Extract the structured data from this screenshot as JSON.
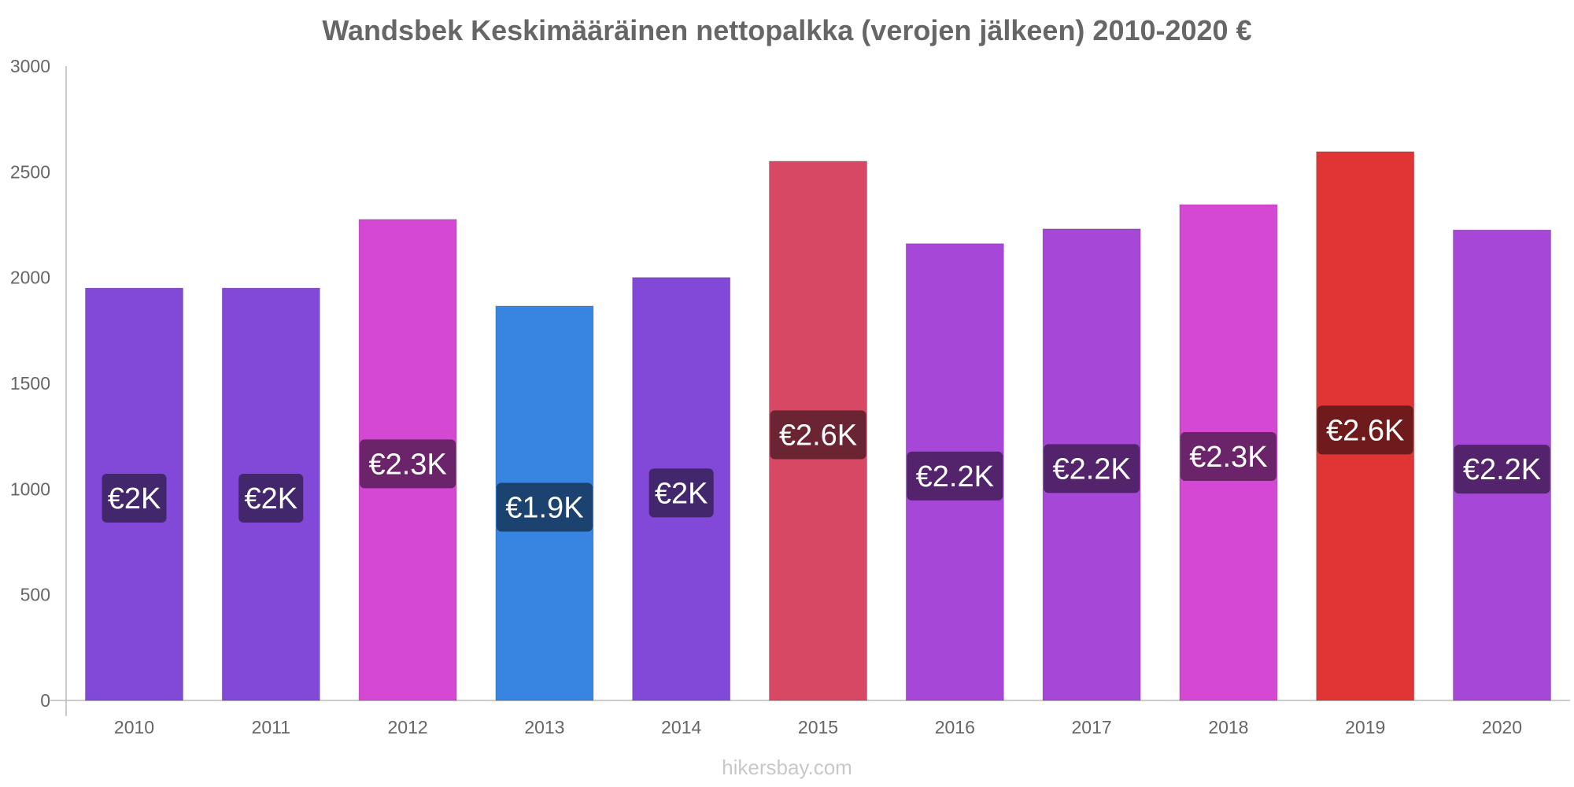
{
  "chart_data": {
    "type": "bar",
    "title": "Wandsbek Keskimääräinen nettopalkka (verojen jälkeen) 2010-2020 €",
    "xlabel": "",
    "ylabel": "",
    "ylim": [
      0,
      3000
    ],
    "yticks": [
      0,
      500,
      1000,
      1500,
      2000,
      2500,
      3000
    ],
    "grid": false,
    "categories": [
      "2010",
      "2011",
      "2012",
      "2013",
      "2014",
      "2015",
      "2016",
      "2017",
      "2018",
      "2019",
      "2020"
    ],
    "values": [
      1950,
      1950,
      2275,
      1865,
      2000,
      2550,
      2160,
      2230,
      2345,
      2595,
      2225
    ],
    "data_labels": [
      "€2K",
      "€2K",
      "€2.3K",
      "€1.9K",
      "€2K",
      "€2.6K",
      "€2.2K",
      "€2.2K",
      "€2.3K",
      "€2.6K",
      "€2.2K"
    ],
    "bar_colors": [
      "#8249d8",
      "#8249d8",
      "#d548d4",
      "#3785e0",
      "#8249d8",
      "#d64863",
      "#a747d8",
      "#a747d8",
      "#d548d4",
      "#e03535",
      "#a747d8"
    ],
    "label_bg_colors": [
      "#42276c",
      "#42276c",
      "#6b246a",
      "#1c4270",
      "#42276c",
      "#6b2432",
      "#53246c",
      "#53246c",
      "#6b246a",
      "#701b1b",
      "#53246c"
    ]
  },
  "watermark": "hikersbay.com"
}
